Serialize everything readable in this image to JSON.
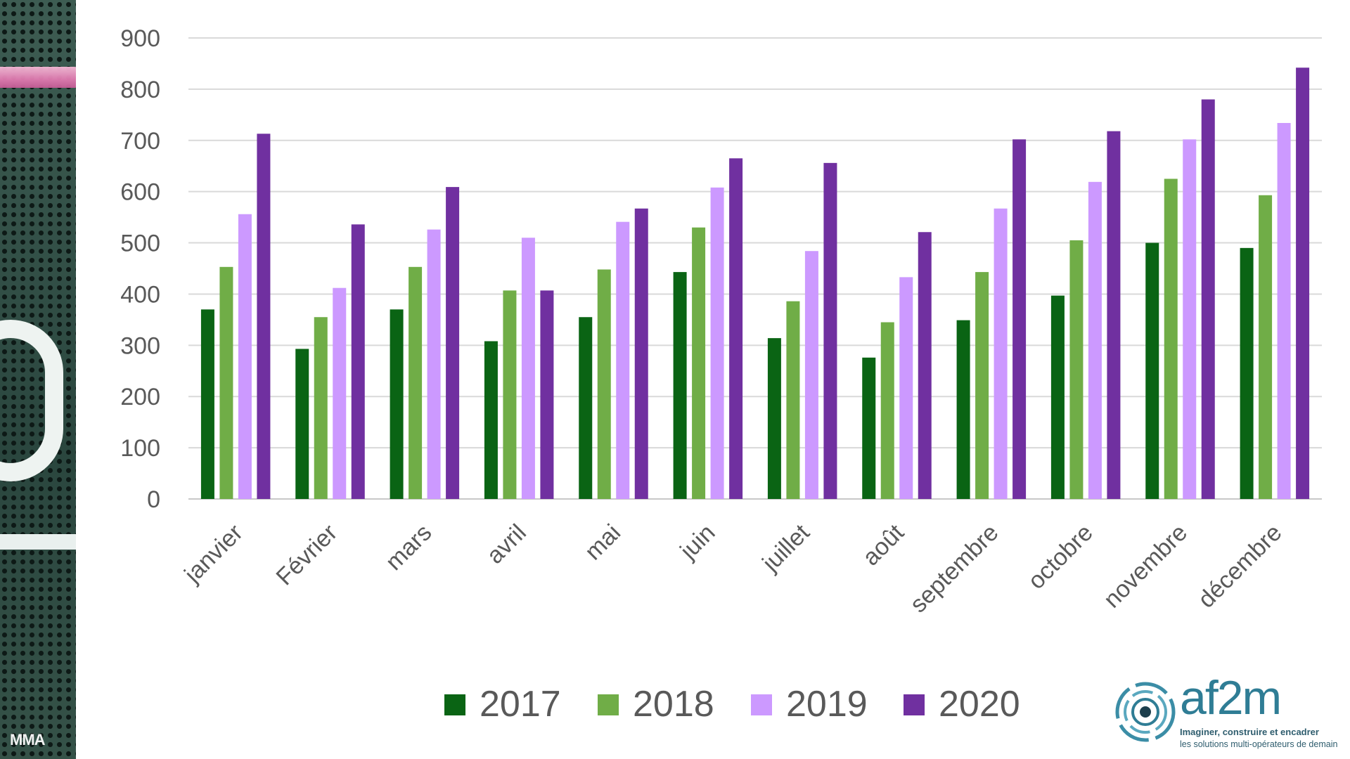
{
  "side_panel": {
    "caption": "MMA"
  },
  "logo": {
    "name": "af2m",
    "tagline_1": "Imaginer, construire et encadrer",
    "tagline_2": "les solutions multi-opérateurs de demain"
  },
  "chart_data": {
    "type": "bar",
    "title": "",
    "xlabel": "",
    "ylabel": "",
    "ylim": [
      0,
      900
    ],
    "yticks": [
      0,
      100,
      200,
      300,
      400,
      500,
      600,
      700,
      800,
      900
    ],
    "grid": true,
    "legend_position": "bottom",
    "categories": [
      "janvier",
      "Février",
      "mars",
      "avril",
      "mai",
      "juin",
      "juillet",
      "août",
      "septembre",
      "octobre",
      "novembre",
      "décembre"
    ],
    "series": [
      {
        "name": "2017",
        "color": "#0a6414",
        "values": [
          370,
          293,
          370,
          308,
          355,
          443,
          314,
          276,
          349,
          397,
          500,
          490
        ]
      },
      {
        "name": "2018",
        "color": "#70ad47",
        "values": [
          453,
          355,
          453,
          407,
          448,
          530,
          386,
          345,
          443,
          505,
          625,
          593
        ]
      },
      {
        "name": "2019",
        "color": "#cc99ff",
        "values": [
          556,
          412,
          526,
          510,
          541,
          608,
          484,
          433,
          567,
          619,
          702,
          734
        ]
      },
      {
        "name": "2020",
        "color": "#7030a0",
        "values": [
          713,
          536,
          609,
          407,
          567,
          665,
          656,
          521,
          702,
          718,
          780,
          842
        ]
      }
    ]
  }
}
